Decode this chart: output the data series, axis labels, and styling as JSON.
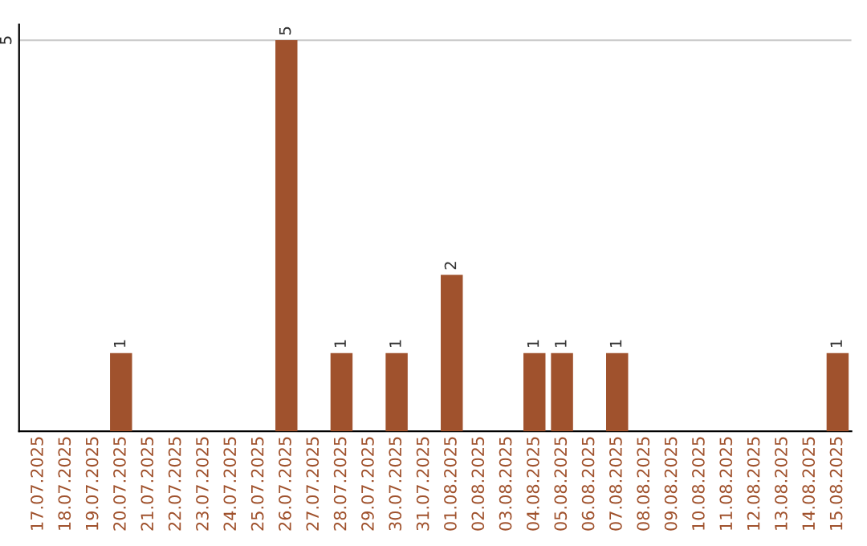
{
  "chart_data": {
    "type": "bar",
    "categories": [
      "17.07.2025",
      "18.07.2025",
      "19.07.2025",
      "20.07.2025",
      "21.07.2025",
      "22.07.2025",
      "23.07.2025",
      "24.07.2025",
      "25.07.2025",
      "26.07.2025",
      "27.07.2025",
      "28.07.2025",
      "29.07.2025",
      "30.07.2025",
      "31.07.2025",
      "01.08.2025",
      "02.08.2025",
      "03.08.2025",
      "04.08.2025",
      "05.08.2025",
      "06.08.2025",
      "07.08.2025",
      "08.08.2025",
      "09.08.2025",
      "10.08.2025",
      "11.08.2025",
      "12.08.2025",
      "13.08.2025",
      "14.08.2025",
      "15.08.2025"
    ],
    "values": [
      0,
      0,
      0,
      1,
      0,
      0,
      0,
      0,
      0,
      5,
      0,
      1,
      0,
      1,
      0,
      2,
      0,
      0,
      1,
      1,
      0,
      1,
      0,
      0,
      0,
      0,
      0,
      0,
      0,
      1
    ],
    "color": "#a0522d",
    "value_labels": [
      null,
      null,
      null,
      "1",
      null,
      null,
      null,
      null,
      null,
      "5",
      null,
      "1",
      null,
      "1",
      null,
      "2",
      null,
      null,
      "1",
      "1",
      null,
      "1",
      null,
      null,
      null,
      null,
      null,
      null,
      null,
      "1"
    ],
    "ylim": [
      0,
      5.2
    ],
    "yticks": [
      5
    ],
    "grid": "y",
    "legend": false
  }
}
